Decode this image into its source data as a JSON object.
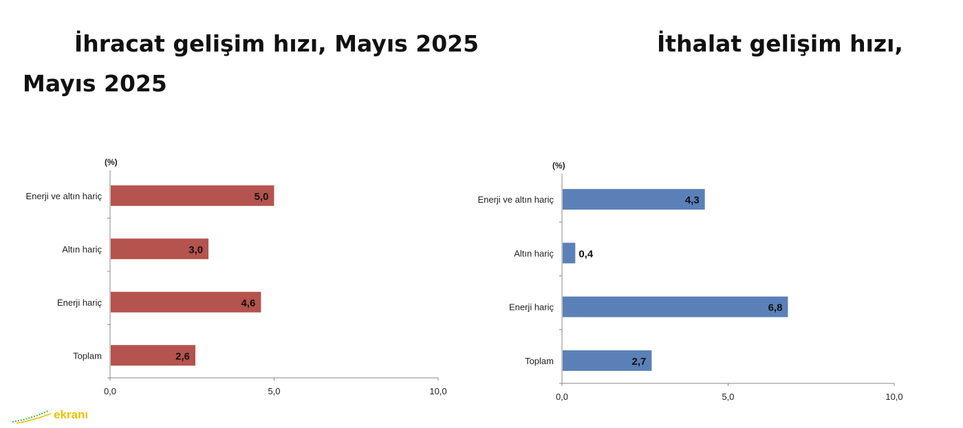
{
  "titles": {
    "left": "İhracat gelişim hızı, Mayıs 2025",
    "right_line1": "İthalat gelişim hızı,",
    "right_line2": "Mayıs 2025"
  },
  "watermark": {
    "text": "ekranı"
  },
  "chart_data": [
    {
      "type": "bar",
      "orientation": "horizontal",
      "unit_label": "(%)",
      "categories": [
        "Enerji ve altın hariç",
        "Altın hariç",
        "Enerji hariç",
        "Toplam"
      ],
      "values": [
        5.0,
        3.0,
        4.6,
        2.6
      ],
      "value_labels": [
        "5,0",
        "3,0",
        "4,6",
        "2,6"
      ],
      "xlim": [
        0,
        10
      ],
      "ticks": [
        "0,0",
        "5,0",
        "10,0"
      ],
      "color": "#b5534e"
    },
    {
      "type": "bar",
      "orientation": "horizontal",
      "unit_label": "(%)",
      "categories": [
        "Enerji ve altın hariç",
        "Altın hariç",
        "Enerji hariç",
        "Toplam"
      ],
      "values": [
        4.3,
        0.4,
        6.8,
        2.7
      ],
      "value_labels": [
        "4,3",
        "0,4",
        "6,8",
        "2,7"
      ],
      "xlim": [
        0,
        10
      ],
      "ticks": [
        "0,0",
        "5,0",
        "10,0"
      ],
      "color": "#5b80b8"
    }
  ]
}
